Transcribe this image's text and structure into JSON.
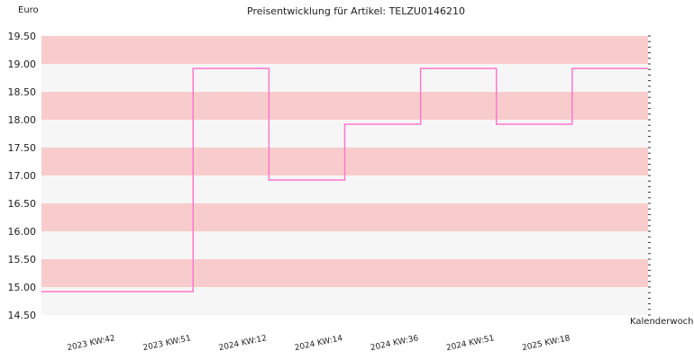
{
  "chart_data": {
    "type": "line",
    "step": true,
    "title": "Preisentwicklung für Artikel: TELZU0146210",
    "ylabel": "Euro",
    "xlabel": "Kalenderwoche",
    "ylim": [
      14.5,
      19.5
    ],
    "y_ticks": [
      "14.50",
      "15.00",
      "15.50",
      "16.00",
      "16.50",
      "17.00",
      "17.50",
      "18.00",
      "18.50",
      "19.00",
      "19.50"
    ],
    "categories": [
      "2023 KW:42",
      "2023 KW:51",
      "2024 KW:12",
      "2024 KW:14",
      "2024 KW:36",
      "2024 KW:51",
      "2025 KW:18"
    ],
    "series": [
      {
        "values": [
          14.92,
          18.92,
          16.92,
          17.92,
          18.92,
          17.92,
          18.92
        ]
      }
    ],
    "colors": {
      "line": "#ff77cc",
      "band_pink": "#f8cccc",
      "band_grey": "#f6f6f6"
    },
    "grid": false,
    "legend": "none"
  }
}
